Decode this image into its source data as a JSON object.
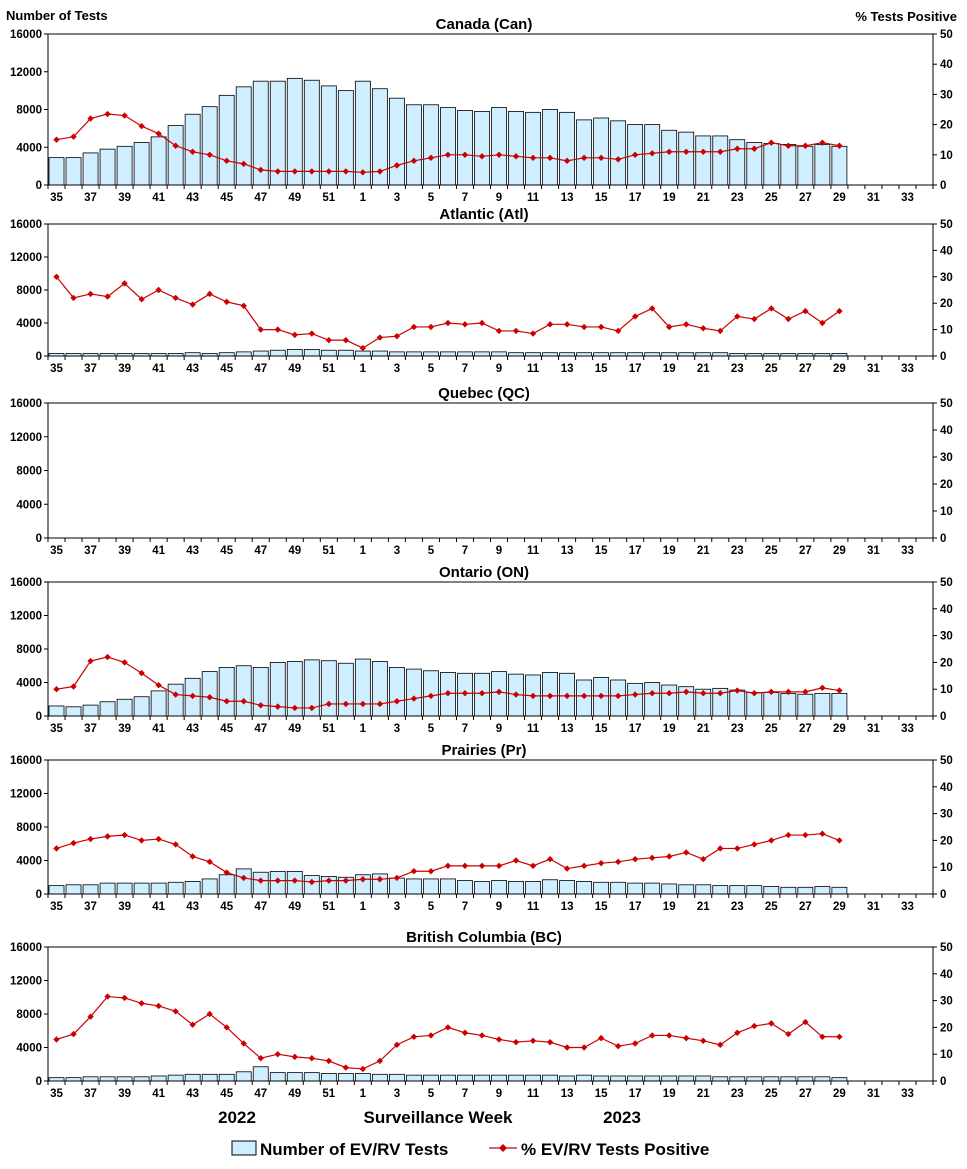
{
  "colors": {
    "bar_fill": "#cfeeff",
    "bar_stroke": "#000000",
    "line": "#cc0000"
  },
  "chart_data": {
    "type": "bar",
    "y_left_label": "Number of Tests",
    "y_right_label": "% Tests Positive",
    "x_axis_label": "Surveillance Week",
    "year_labels": [
      "2022",
      "2023"
    ],
    "ylim_left": [
      0,
      16000
    ],
    "ylim_right": [
      0,
      50
    ],
    "left_ticks": [
      "0",
      "4000",
      "8000",
      "12000",
      "16000"
    ],
    "right_ticks": [
      "0",
      "10",
      "20",
      "30",
      "40",
      "50"
    ],
    "weeks": [
      35,
      36,
      37,
      38,
      39,
      40,
      41,
      42,
      43,
      44,
      45,
      46,
      47,
      48,
      49,
      50,
      51,
      52,
      1,
      2,
      3,
      4,
      5,
      6,
      7,
      8,
      9,
      10,
      11,
      12,
      13,
      14,
      15,
      16,
      17,
      18,
      19,
      20,
      21,
      22,
      23,
      24,
      25,
      26,
      27,
      28,
      29,
      30,
      31,
      32,
      33,
      34
    ],
    "tick_labels": [
      "35",
      "37",
      "39",
      "41",
      "43",
      "45",
      "47",
      "49",
      "51",
      "1",
      "3",
      "5",
      "7",
      "9",
      "11",
      "13",
      "15",
      "17",
      "19",
      "21",
      "23",
      "25",
      "27",
      "29",
      "31",
      "33"
    ],
    "legend": {
      "bars": "Number of EV/RV Tests",
      "line": "% EV/RV Tests Positive"
    },
    "panels": [
      {
        "title": "Canada (Can)",
        "tests": [
          2900,
          2900,
          3400,
          3800,
          4100,
          4500,
          5100,
          6300,
          7500,
          8300,
          9500,
          10400,
          11000,
          11000,
          11300,
          11100,
          10500,
          10000,
          11000,
          10200,
          9200,
          8500,
          8500,
          8200,
          7900,
          7800,
          8200,
          7800,
          7700,
          8000,
          7700,
          6900,
          7100,
          6800,
          6400,
          6400,
          5800,
          5600,
          5200,
          5200,
          4800,
          4500,
          4400,
          4300,
          4100,
          4300,
          4100,
          null,
          null,
          null,
          null,
          null
        ],
        "positive": [
          15,
          16,
          22,
          23.5,
          23,
          19.5,
          17,
          13,
          11,
          10,
          8,
          7,
          5,
          4.5,
          4.5,
          4.5,
          4.5,
          4.5,
          4.2,
          4.5,
          6.5,
          8,
          9,
          10,
          10,
          9.5,
          10,
          9.5,
          9,
          9,
          8,
          9,
          9,
          8.5,
          10,
          10.5,
          11,
          11,
          11,
          11,
          12,
          12,
          14,
          13,
          13,
          14,
          13,
          null,
          null,
          null,
          null,
          null
        ]
      },
      {
        "title": "Atlantic (Atl)",
        "tests": [
          300,
          300,
          300,
          300,
          300,
          300,
          300,
          300,
          400,
          300,
          400,
          500,
          600,
          700,
          800,
          800,
          700,
          700,
          600,
          600,
          500,
          500,
          500,
          500,
          500,
          500,
          500,
          400,
          400,
          400,
          400,
          400,
          400,
          400,
          400,
          400,
          400,
          400,
          400,
          400,
          300,
          300,
          300,
          300,
          300,
          300,
          300,
          null,
          null,
          null,
          null,
          null
        ],
        "positive": [
          30,
          22,
          23.5,
          22.5,
          27.5,
          21.5,
          25,
          22,
          19.5,
          23.5,
          20.5,
          19,
          10,
          10,
          8,
          8.5,
          6,
          6,
          3,
          7,
          7.5,
          11,
          11,
          12.5,
          12,
          12.5,
          9.5,
          9.5,
          8.5,
          12,
          12,
          11,
          11,
          9.5,
          15,
          18,
          11,
          12,
          10.5,
          9.5,
          15,
          14,
          18,
          14,
          17,
          12.5,
          17,
          null,
          null,
          null,
          null,
          null
        ]
      },
      {
        "title": "Quebec (QC)",
        "tests": [],
        "positive": []
      },
      {
        "title": "Ontario (ON)",
        "tests": [
          1200,
          1100,
          1300,
          1700,
          2000,
          2300,
          3000,
          3800,
          4500,
          5300,
          5800,
          6000,
          5800,
          6400,
          6500,
          6700,
          6600,
          6300,
          6800,
          6500,
          5800,
          5600,
          5400,
          5200,
          5100,
          5100,
          5300,
          5000,
          4900,
          5200,
          5100,
          4300,
          4600,
          4300,
          3900,
          4000,
          3700,
          3500,
          3200,
          3300,
          3100,
          2800,
          2800,
          2700,
          2600,
          2700,
          2700,
          null,
          null,
          null,
          null,
          null
        ],
        "positive": [
          10,
          11,
          20.5,
          22,
          20,
          16,
          11.5,
          8,
          7.5,
          7,
          5.5,
          5.5,
          4,
          3.5,
          3,
          3,
          4.5,
          4.5,
          4.5,
          4.5,
          5.5,
          6.5,
          7.5,
          8.5,
          8.5,
          8.5,
          9,
          8,
          7.5,
          7.5,
          7.5,
          7.5,
          7.5,
          7.5,
          8,
          8.5,
          8.5,
          9,
          8.5,
          8.5,
          9.5,
          8.5,
          9,
          9,
          9,
          10.5,
          9.5,
          null,
          null,
          null,
          null,
          null
        ]
      },
      {
        "title": "Prairies (Pr)",
        "tests": [
          1000,
          1100,
          1100,
          1300,
          1300,
          1300,
          1300,
          1400,
          1500,
          1800,
          2300,
          3000,
          2600,
          2700,
          2700,
          2200,
          2100,
          2000,
          2300,
          2400,
          1900,
          1800,
          1800,
          1800,
          1600,
          1500,
          1600,
          1500,
          1500,
          1700,
          1600,
          1500,
          1400,
          1400,
          1300,
          1300,
          1200,
          1100,
          1100,
          1000,
          1000,
          1000,
          900,
          800,
          800,
          900,
          800,
          null,
          null,
          null,
          null,
          null
        ],
        "positive": [
          17,
          19,
          20.5,
          21.5,
          22,
          20,
          20.5,
          18.5,
          14,
          12,
          8,
          6,
          5,
          5,
          5,
          4.5,
          5,
          5,
          5.5,
          5.5,
          6,
          8.5,
          8.5,
          10.5,
          10.5,
          10.5,
          10.5,
          12.5,
          10.5,
          13,
          9.5,
          10.5,
          11.5,
          12,
          13,
          13.5,
          14,
          15.5,
          13,
          17,
          17,
          18.5,
          20,
          22,
          22,
          22.5,
          20,
          null,
          null,
          null,
          null,
          null
        ]
      },
      {
        "title": "British Columbia (BC)",
        "tests": [
          400,
          400,
          500,
          500,
          500,
          500,
          600,
          700,
          800,
          800,
          800,
          1100,
          1700,
          1000,
          1000,
          1000,
          900,
          900,
          900,
          800,
          800,
          700,
          700,
          700,
          700,
          700,
          700,
          700,
          700,
          700,
          600,
          700,
          600,
          600,
          600,
          600,
          600,
          600,
          600,
          500,
          500,
          500,
          500,
          500,
          500,
          500,
          400,
          null,
          null,
          null,
          null,
          null
        ],
        "positive": [
          15.5,
          17.5,
          24,
          31.5,
          31,
          29,
          28,
          26,
          21,
          25,
          20,
          14,
          8.5,
          10,
          9,
          8.5,
          7.5,
          5,
          4.5,
          7.5,
          13.5,
          16.5,
          17,
          20,
          18,
          17,
          15.5,
          14.5,
          15,
          14.5,
          12.5,
          12.5,
          16,
          13,
          14,
          17,
          17,
          16,
          15,
          13.5,
          18,
          20.5,
          21.5,
          17.5,
          22,
          16.5,
          16.5,
          null,
          null,
          null,
          null,
          null
        ]
      }
    ]
  }
}
